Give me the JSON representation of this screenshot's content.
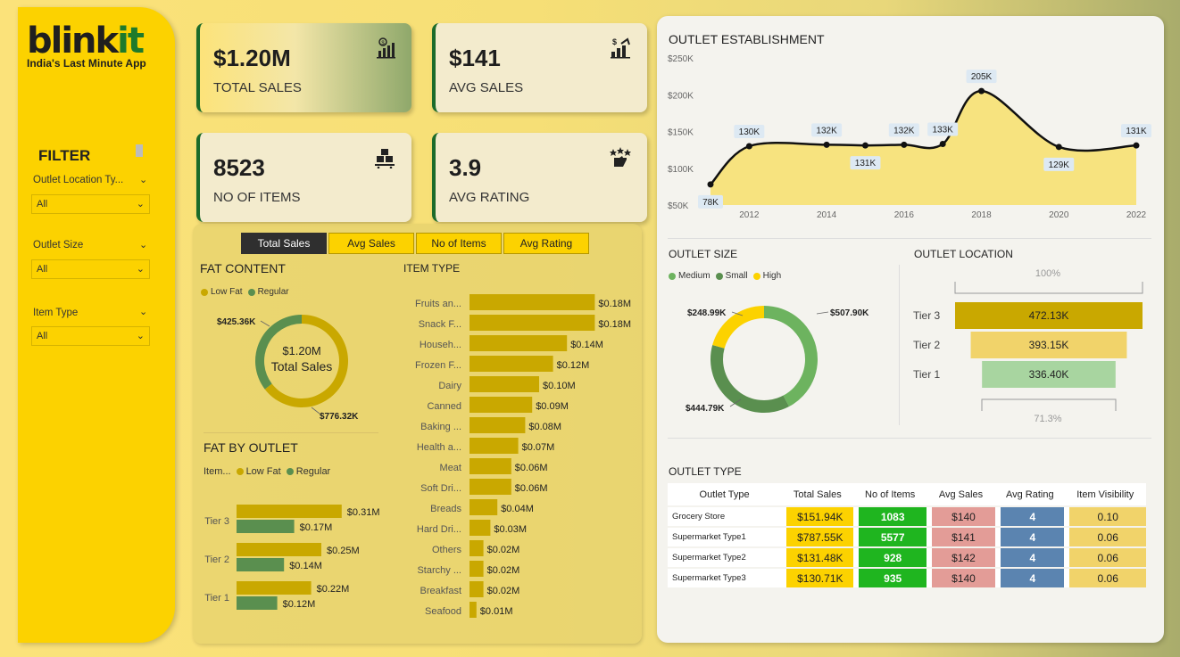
{
  "brand": {
    "logo_a": "blink",
    "logo_b": "it",
    "tagline": "India's Last Minute App"
  },
  "filters": {
    "title": "FILTER",
    "items": [
      {
        "label": "Outlet Location Ty...",
        "value": "All"
      },
      {
        "label": "Outlet Size",
        "value": "All"
      },
      {
        "label": "Item Type",
        "value": "All"
      }
    ]
  },
  "kpis": [
    {
      "value": "$1.20M",
      "label": "TOTAL SALES",
      "icon": "bar-chart-icon"
    },
    {
      "value": "$141",
      "label": "AVG SALES",
      "icon": "growth-chart-icon"
    },
    {
      "value": "8523",
      "label": "NO OF ITEMS",
      "icon": "boxes-icon"
    },
    {
      "value": "3.9",
      "label": "AVG RATING",
      "icon": "rating-stars-icon"
    }
  ],
  "metric_tabs": [
    "Total Sales",
    "Avg Sales",
    "No of Items",
    "Avg Rating"
  ],
  "active_tab": "Total Sales",
  "fat_content": {
    "title": "FAT CONTENT",
    "legend": [
      "Low Fat",
      "Regular"
    ],
    "center_value": "$1.20M",
    "center_label": "Total Sales",
    "labels": [
      "$425.36K",
      "$776.32K"
    ]
  },
  "fat_by_outlet": {
    "title": "FAT BY OUTLET",
    "legend_title": "Item...",
    "legend": [
      "Low Fat",
      "Regular"
    ]
  },
  "item_type": {
    "title": "ITEM TYPE"
  },
  "outlet_establishment": {
    "title": "OUTLET ESTABLISHMENT"
  },
  "outlet_size": {
    "title": "OUTLET SIZE",
    "legend": [
      "Medium",
      "Small",
      "High"
    ],
    "labels": [
      "$507.90K",
      "$444.79K",
      "$248.99K"
    ]
  },
  "outlet_location": {
    "title": "OUTLET LOCATION",
    "top_pct": "100%",
    "bottom_pct": "71.3%"
  },
  "outlet_type": {
    "title": "OUTLET TYPE",
    "headers": [
      "Outlet Type",
      "Total Sales",
      "No of Items",
      "Avg Sales",
      "Avg Rating",
      "Item Visibility"
    ],
    "rows": [
      [
        "Grocery Store",
        "$151.94K",
        "1083",
        "$140",
        "4",
        "0.10"
      ],
      [
        "Supermarket Type1",
        "$787.55K",
        "5577",
        "$141",
        "4",
        "0.06"
      ],
      [
        "Supermarket Type2",
        "$131.48K",
        "928",
        "$142",
        "4",
        "0.06"
      ],
      [
        "Supermarket Type3",
        "$130.71K",
        "935",
        "$140",
        "4",
        "0.06"
      ]
    ]
  },
  "colors": {
    "yellow": "#fcd200",
    "gold": "#c9a800",
    "green": "#5a8f4f",
    "medium_green": "#6db35f",
    "tier2": "#f1d36a",
    "tier1": "#a8d5a0",
    "items_green": "#1fb51f",
    "sales_red": "#e39c97",
    "rating_blue": "#5b84b0",
    "visibility_yellow": "#f1d36a"
  },
  "chart_data": [
    {
      "type": "pie",
      "title": "FAT CONTENT",
      "categories": [
        "Low Fat",
        "Regular"
      ],
      "values": [
        776.32,
        425.36
      ],
      "unit": "K"
    },
    {
      "type": "bar",
      "title": "FAT BY OUTLET",
      "categories": [
        "Tier 3",
        "Tier 2",
        "Tier 1"
      ],
      "series": [
        {
          "name": "Low Fat",
          "values": [
            0.31,
            0.25,
            0.22
          ],
          "labels": [
            "$0.31M",
            "$0.25M",
            "$0.22M"
          ]
        },
        {
          "name": "Regular",
          "values": [
            0.17,
            0.14,
            0.12
          ],
          "labels": [
            "$0.17M",
            "$0.14M",
            "$0.12M"
          ]
        }
      ]
    },
    {
      "type": "bar",
      "title": "ITEM TYPE",
      "categories": [
        "Fruits an...",
        "Snack F...",
        "Househ...",
        "Frozen F...",
        "Dairy",
        "Canned",
        "Baking ...",
        "Health a...",
        "Meat",
        "Soft Dri...",
        "Breads",
        "Hard Dri...",
        "Others",
        "Starchy ...",
        "Breakfast",
        "Seafood"
      ],
      "values": [
        0.18,
        0.18,
        0.14,
        0.12,
        0.1,
        0.09,
        0.08,
        0.07,
        0.06,
        0.06,
        0.04,
        0.03,
        0.02,
        0.02,
        0.02,
        0.01
      ],
      "labels": [
        "$0.18M",
        "$0.18M",
        "$0.14M",
        "$0.12M",
        "$0.10M",
        "$0.09M",
        "$0.08M",
        "$0.07M",
        "$0.06M",
        "$0.06M",
        "$0.04M",
        "$0.03M",
        "$0.02M",
        "$0.02M",
        "$0.02M",
        "$0.01M"
      ]
    },
    {
      "type": "area",
      "title": "OUTLET ESTABLISHMENT",
      "x": [
        2011,
        2012,
        2014,
        2015,
        2016,
        2017,
        2018,
        2020,
        2022
      ],
      "values": [
        78,
        130,
        132,
        131,
        132,
        133,
        205,
        129,
        131
      ],
      "labels": [
        "$78K",
        "$130K",
        "$132K",
        "$131K",
        "$132K",
        "$133K",
        "$205K",
        "$129K",
        "$131K"
      ],
      "xticks": [
        "2012",
        "2014",
        "2016",
        "2018",
        "2020",
        "2022"
      ],
      "yticks": [
        "$50K",
        "$100K",
        "$150K",
        "$200K",
        "$250K"
      ],
      "ylim": [
        50,
        250
      ]
    },
    {
      "type": "pie",
      "title": "OUTLET SIZE",
      "categories": [
        "Medium",
        "Small",
        "High"
      ],
      "values": [
        507.9,
        444.79,
        248.99
      ],
      "unit": "K"
    },
    {
      "type": "bar",
      "title": "OUTLET LOCATION",
      "categories": [
        "Tier 3",
        "Tier 2",
        "Tier 1"
      ],
      "values": [
        472.13,
        393.15,
        336.4
      ],
      "labels": [
        "472.13K",
        "393.15K",
        "336.40K"
      ]
    }
  ]
}
